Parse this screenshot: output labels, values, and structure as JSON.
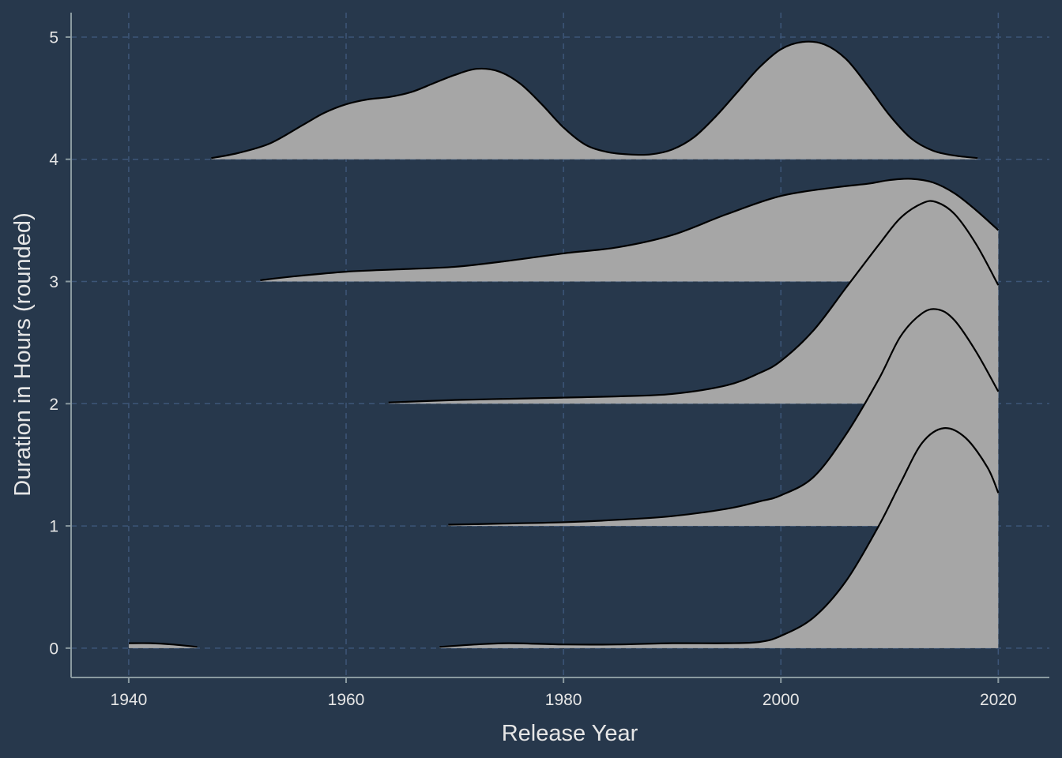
{
  "chart_data": {
    "type": "ridgeline",
    "title": "",
    "xlabel": "Release Year",
    "ylabel": "Duration in Hours (rounded)",
    "xlim": [
      1934.7,
      2024.7
    ],
    "ylim": [
      -0.24,
      5.2
    ],
    "x_ticks": [
      "1940",
      "1960",
      "1980",
      "2000",
      "2020"
    ],
    "y_ticks": [
      "0",
      "1",
      "2",
      "3",
      "4",
      "5"
    ],
    "grid": true,
    "fill_color": "#a6a6a6",
    "line_color": "#000000",
    "background": "#27384c",
    "grid_color": "#3d5678",
    "axis_color": "#8a9aa0",
    "series": [
      {
        "baseline": 4,
        "segments": [
          [
            [
              1947.6,
              4.01
            ],
            [
              1950,
              4.05
            ],
            [
              1953,
              4.13
            ],
            [
              1956,
              4.28
            ],
            [
              1958,
              4.38
            ],
            [
              1960,
              4.45
            ],
            [
              1962,
              4.49
            ],
            [
              1964,
              4.51
            ],
            [
              1966,
              4.55
            ],
            [
              1968,
              4.62
            ],
            [
              1970,
              4.69
            ],
            [
              1972,
              4.74
            ],
            [
              1974,
              4.72
            ],
            [
              1976,
              4.62
            ],
            [
              1978,
              4.45
            ],
            [
              1980,
              4.26
            ],
            [
              1982,
              4.12
            ],
            [
              1984,
              4.06
            ],
            [
              1986,
              4.04
            ],
            [
              1988,
              4.04
            ],
            [
              1990,
              4.08
            ],
            [
              1992,
              4.18
            ],
            [
              1994,
              4.35
            ],
            [
              1996,
              4.55
            ],
            [
              1998,
              4.75
            ],
            [
              2000,
              4.9
            ],
            [
              2002,
              4.96
            ],
            [
              2004,
              4.94
            ],
            [
              2006,
              4.82
            ],
            [
              2008,
              4.6
            ],
            [
              2010,
              4.36
            ],
            [
              2012,
              4.17
            ],
            [
              2014,
              4.07
            ],
            [
              2016,
              4.03
            ],
            [
              2018.1,
              4.01
            ]
          ]
        ]
      },
      {
        "baseline": 3,
        "segments": [
          [
            [
              1952.1,
              3.01
            ],
            [
              1955,
              3.04
            ],
            [
              1960,
              3.08
            ],
            [
              1965,
              3.1
            ],
            [
              1970,
              3.12
            ],
            [
              1975,
              3.17
            ],
            [
              1980,
              3.23
            ],
            [
              1985,
              3.28
            ],
            [
              1990,
              3.38
            ],
            [
              1995,
              3.55
            ],
            [
              2000,
              3.7
            ],
            [
              2005,
              3.77
            ],
            [
              2008,
              3.8
            ],
            [
              2010,
              3.83
            ],
            [
              2012,
              3.84
            ],
            [
              2014,
              3.81
            ],
            [
              2016,
              3.72
            ],
            [
              2018,
              3.58
            ],
            [
              2020,
              3.42
            ]
          ]
        ]
      },
      {
        "baseline": 2,
        "segments": [
          [
            [
              1963.9,
              2.01
            ],
            [
              1970,
              2.03
            ],
            [
              1975,
              2.04
            ],
            [
              1980,
              2.05
            ],
            [
              1985,
              2.06
            ],
            [
              1990,
              2.08
            ],
            [
              1995,
              2.15
            ],
            [
              1998,
              2.25
            ],
            [
              2000,
              2.35
            ],
            [
              2003,
              2.6
            ],
            [
              2006,
              2.95
            ],
            [
              2009,
              3.3
            ],
            [
              2011,
              3.52
            ],
            [
              2013,
              3.64
            ],
            [
              2014.3,
              3.65
            ],
            [
              2016,
              3.55
            ],
            [
              2018,
              3.3
            ],
            [
              2020,
              2.97
            ]
          ]
        ]
      },
      {
        "baseline": 1,
        "segments": [
          [
            [
              1969.4,
              1.01
            ],
            [
              1975,
              1.02
            ],
            [
              1980,
              1.03
            ],
            [
              1985,
              1.05
            ],
            [
              1990,
              1.08
            ],
            [
              1995,
              1.14
            ],
            [
              1998,
              1.2
            ],
            [
              2000,
              1.25
            ],
            [
              2003,
              1.4
            ],
            [
              2006,
              1.75
            ],
            [
              2009,
              2.2
            ],
            [
              2011,
              2.55
            ],
            [
              2013,
              2.74
            ],
            [
              2014.5,
              2.77
            ],
            [
              2016,
              2.68
            ],
            [
              2018,
              2.42
            ],
            [
              2020,
              2.1
            ]
          ]
        ]
      },
      {
        "baseline": 0,
        "segments": [
          [
            [
              1940,
              0.04
            ],
            [
              1942,
              0.04
            ],
            [
              1944,
              0.03
            ],
            [
              1946.3,
              0.01
            ]
          ],
          [
            [
              1968.6,
              0.01
            ],
            [
              1972,
              0.03
            ],
            [
              1975,
              0.04
            ],
            [
              1980,
              0.03
            ],
            [
              1985,
              0.03
            ],
            [
              1990,
              0.04
            ],
            [
              1995,
              0.04
            ],
            [
              1998,
              0.05
            ],
            [
              2000,
              0.1
            ],
            [
              2003,
              0.25
            ],
            [
              2006,
              0.55
            ],
            [
              2009,
              1.0
            ],
            [
              2011,
              1.35
            ],
            [
              2013,
              1.68
            ],
            [
              2015,
              1.8
            ],
            [
              2017,
              1.72
            ],
            [
              2019,
              1.48
            ],
            [
              2020,
              1.27
            ]
          ]
        ]
      }
    ]
  }
}
